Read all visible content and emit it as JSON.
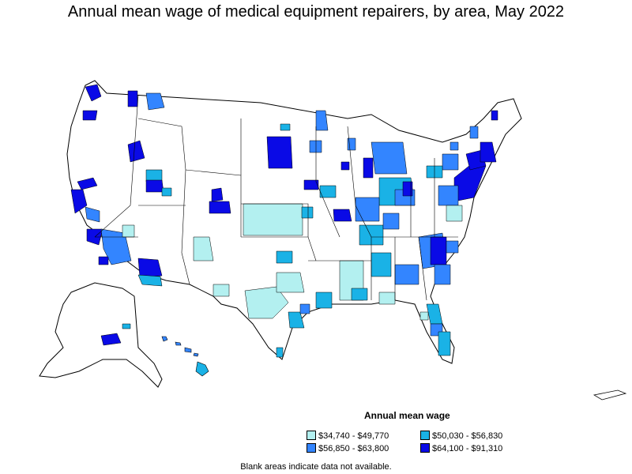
{
  "title": "Annual mean wage of medical equipment repairers, by area, May 2022",
  "legend": {
    "title": "Annual mean wage",
    "items": [
      {
        "label": "$34,740 - $49,770",
        "color": "#b3f0f0"
      },
      {
        "label": "$50,030 - $56,830",
        "color": "#1ab2e6"
      },
      {
        "label": "$56,850 - $63,800",
        "color": "#3385ff"
      },
      {
        "label": "$64,100 - $91,310",
        "color": "#0a0ae6"
      }
    ]
  },
  "note": "Blank areas indicate data not available.",
  "colors": {
    "border": "#000000",
    "no_data": "#ffffff"
  }
}
